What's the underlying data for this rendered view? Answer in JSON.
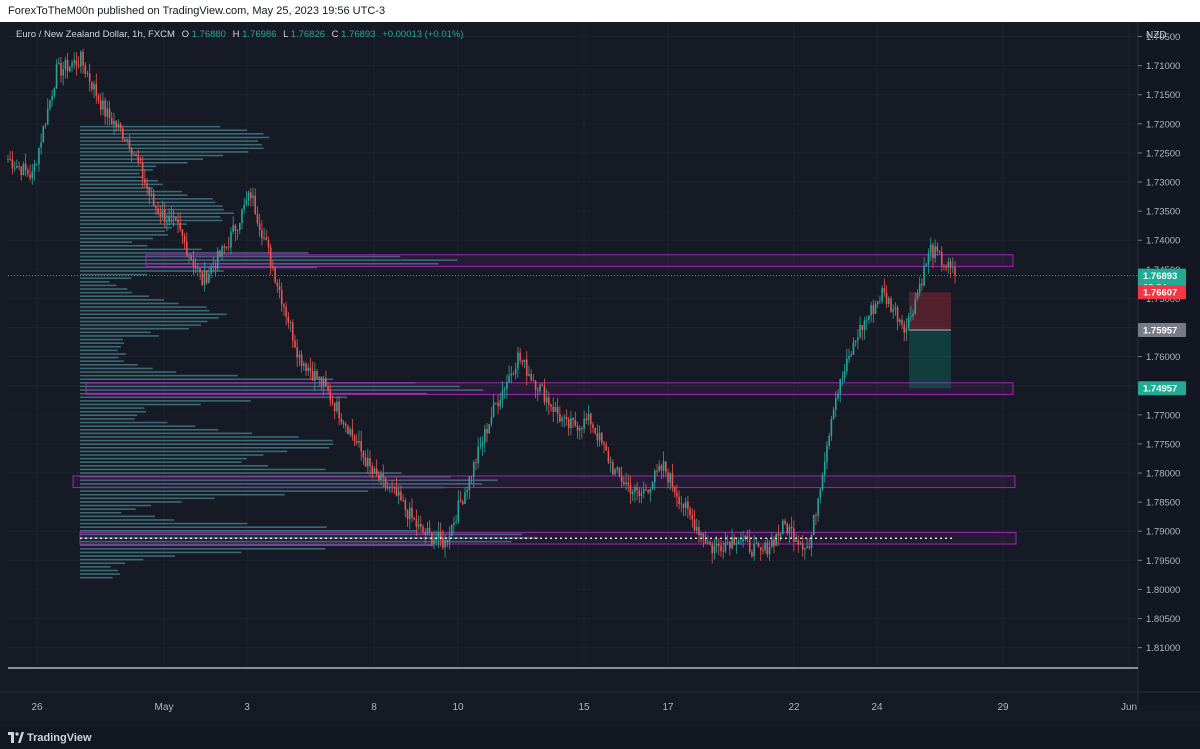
{
  "header": {
    "published_text": "ForexToTheM00n published on TradingView.com, May 25, 2023 19:56 UTC-3"
  },
  "legend": {
    "symbol": "Euro / New Zealand Dollar, 1h, FXCM",
    "o_label": "O",
    "o_value": "1.76880",
    "h_label": "H",
    "h_value": "1.76986",
    "l_label": "L",
    "l_value": "1.76826",
    "c_label": "C",
    "c_value": "1.76893",
    "change": "+0.00013 (+0.01%)"
  },
  "price_scale": {
    "currency": "NZD",
    "ticks": [
      "1.81000",
      "1.80500",
      "1.80000",
      "1.79500",
      "1.79000",
      "1.78500",
      "1.78000",
      "1.77500",
      "1.77000",
      "1.76500",
      "1.76000",
      "1.75500",
      "1.75000",
      "1.74500",
      "1.74000",
      "1.73500",
      "1.73000",
      "1.72500",
      "1.72000",
      "1.71500",
      "1.71000",
      "1.70500"
    ],
    "current_price": "1.76893",
    "countdown": "03:34",
    "stop_label": "1.76607",
    "entry_label": "1.75957",
    "target_label": "1.74957"
  },
  "time_scale": {
    "labels": [
      "26",
      "May",
      "3",
      "8",
      "10",
      "15",
      "17",
      "22",
      "24",
      "29",
      "Jun"
    ]
  },
  "footer": {
    "brand": "TradingView"
  },
  "colors": {
    "background": "#131722",
    "up": "#26a69a",
    "down": "#ef5350",
    "zone": "#9c27b0",
    "profile": "#5fb7c3",
    "current_price_badge": "#22ab94",
    "stop_badge": "#f23645",
    "entry_badge": "#787b86"
  },
  "chart_data": {
    "type": "candlestick",
    "title": "Euro / New Zealand Dollar, 1h, FXCM",
    "ylim": [
      1.7015,
      1.8125
    ],
    "y_ticks": [
      1.705,
      1.71,
      1.715,
      1.72,
      1.725,
      1.73,
      1.735,
      1.74,
      1.745,
      1.75,
      1.755,
      1.76,
      1.765,
      1.77,
      1.775,
      1.78,
      1.785,
      1.79,
      1.795,
      1.8,
      1.805,
      1.81
    ],
    "x_labels": [
      "26",
      "May",
      "3",
      "8",
      "10",
      "15",
      "17",
      "22",
      "24",
      "29",
      "Jun"
    ],
    "path": [
      {
        "t": "Apr 26",
        "price": 1.789
      },
      {
        "t": "Apr 27",
        "price": 1.786
      },
      {
        "t": "Apr 28",
        "price": 1.804
      },
      {
        "t": "Apr 28",
        "price": 1.806
      },
      {
        "t": "Apr 29",
        "price": 1.797
      },
      {
        "t": "May 1",
        "price": 1.792
      },
      {
        "t": "May 2",
        "price": 1.781
      },
      {
        "t": "May 3",
        "price": 1.777
      },
      {
        "t": "May 3",
        "price": 1.768
      },
      {
        "t": "May 4",
        "price": 1.774
      },
      {
        "t": "May 4",
        "price": 1.783
      },
      {
        "t": "May 5",
        "price": 1.769
      },
      {
        "t": "May 5",
        "price": 1.755
      },
      {
        "t": "May 8",
        "price": 1.75
      },
      {
        "t": "May 8",
        "price": 1.743
      },
      {
        "t": "May 9",
        "price": 1.735
      },
      {
        "t": "May 10",
        "price": 1.731
      },
      {
        "t": "May 11",
        "price": 1.725
      },
      {
        "t": "May 12",
        "price": 1.723
      },
      {
        "t": "May 12",
        "price": 1.734
      },
      {
        "t": "May 14",
        "price": 1.746
      },
      {
        "t": "May 15",
        "price": 1.755
      },
      {
        "t": "May 15",
        "price": 1.749
      },
      {
        "t": "May 16",
        "price": 1.743
      },
      {
        "t": "May 16",
        "price": 1.744
      },
      {
        "t": "May 17",
        "price": 1.735
      },
      {
        "t": "May 18",
        "price": 1.731
      },
      {
        "t": "May 18",
        "price": 1.736
      },
      {
        "t": "May 19",
        "price": 1.728
      },
      {
        "t": "May 21",
        "price": 1.722
      },
      {
        "t": "May 22",
        "price": 1.724
      },
      {
        "t": "May 23",
        "price": 1.721
      },
      {
        "t": "May 23",
        "price": 1.726
      },
      {
        "t": "May 24",
        "price": 1.722
      },
      {
        "t": "May 24",
        "price": 1.747
      },
      {
        "t": "May 24",
        "price": 1.759
      },
      {
        "t": "May 25",
        "price": 1.766
      },
      {
        "t": "May 25",
        "price": 1.76
      },
      {
        "t": "May 25",
        "price": 1.7735
      },
      {
        "t": "May 25",
        "price": 1.76893
      }
    ],
    "current_price": 1.76893,
    "zones": [
      {
        "from": 1.7705,
        "to": 1.7725
      },
      {
        "from": 1.7485,
        "to": 1.7505
      },
      {
        "from": 1.7325,
        "to": 1.7345
      },
      {
        "from": 1.7228,
        "to": 1.7248
      }
    ],
    "point_of_control": 1.7238,
    "position": {
      "stop": 1.76607,
      "entry": 1.75957,
      "target": 1.74957
    },
    "volume_profile_span": [
      1.717,
      1.795
    ]
  }
}
